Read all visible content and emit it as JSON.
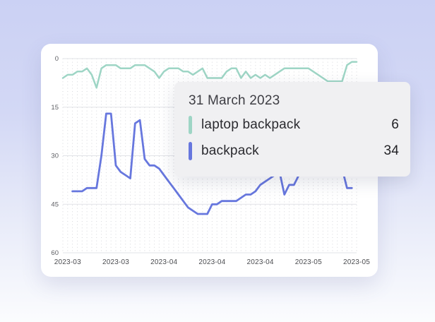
{
  "tooltip": {
    "date_label": "31 March 2023",
    "rows": [
      {
        "label": "laptop backpack",
        "value": "6",
        "color": "#9ed5c5"
      },
      {
        "label": "backpack",
        "value": "34",
        "color": "#6777de"
      }
    ]
  },
  "chart_data": {
    "type": "line",
    "title": "",
    "xlabel": "",
    "ylabel": "",
    "y_axis_inverted": true,
    "ylim": [
      0,
      60
    ],
    "y_ticks": [
      "0",
      "15",
      "30",
      "45",
      "60"
    ],
    "x_tick_labels": [
      "2023-03",
      "2023-03",
      "2023-04",
      "2023-04",
      "2023-04",
      "2023-05",
      "2023-05"
    ],
    "x_tick_indices": [
      1,
      11,
      21,
      31,
      41,
      51,
      61
    ],
    "grid": {
      "major_horizontal": "solid",
      "minor_vertical": "dotted"
    },
    "legend_position": "tooltip-only",
    "hover_date": "2023-03-31",
    "dates": [
      "2023-03-11",
      "2023-03-12",
      "2023-03-13",
      "2023-03-14",
      "2023-03-15",
      "2023-03-16",
      "2023-03-17",
      "2023-03-18",
      "2023-03-19",
      "2023-03-20",
      "2023-03-21",
      "2023-03-22",
      "2023-03-23",
      "2023-03-24",
      "2023-03-25",
      "2023-03-26",
      "2023-03-27",
      "2023-03-28",
      "2023-03-29",
      "2023-03-30",
      "2023-03-31",
      "2023-04-01",
      "2023-04-02",
      "2023-04-03",
      "2023-04-04",
      "2023-04-05",
      "2023-04-06",
      "2023-04-07",
      "2023-04-08",
      "2023-04-09",
      "2023-04-10",
      "2023-04-11",
      "2023-04-12",
      "2023-04-13",
      "2023-04-14",
      "2023-04-15",
      "2023-04-16",
      "2023-04-17",
      "2023-04-18",
      "2023-04-19",
      "2023-04-20",
      "2023-04-21",
      "2023-04-22",
      "2023-04-23",
      "2023-04-24",
      "2023-04-25",
      "2023-04-26",
      "2023-04-27",
      "2023-04-28",
      "2023-04-29",
      "2023-04-30",
      "2023-05-01",
      "2023-05-02",
      "2023-05-03",
      "2023-05-04",
      "2023-05-05",
      "2023-05-06",
      "2023-05-07",
      "2023-05-08",
      "2023-05-09",
      "2023-05-10",
      "2023-05-11"
    ],
    "series": [
      {
        "name": "laptop backpack",
        "color": "#9ed5c5",
        "stroke_width": 2.5,
        "values": [
          6,
          5,
          5,
          4,
          4,
          3,
          5,
          9,
          3,
          2,
          2,
          2,
          3,
          3,
          3,
          2,
          2,
          2,
          3,
          4,
          6,
          4,
          3,
          3,
          3,
          4,
          4,
          5,
          4,
          3,
          6,
          6,
          6,
          6,
          4,
          3,
          3,
          6,
          4,
          6,
          5,
          6,
          5,
          6,
          5,
          4,
          3,
          3,
          3,
          3,
          3,
          3,
          4,
          5,
          6,
          7,
          7,
          7,
          7,
          2,
          1,
          1
        ]
      },
      {
        "name": "backpack",
        "color": "#6777de",
        "stroke_width": 2.8,
        "values": [
          null,
          null,
          41,
          41,
          41,
          40,
          40,
          40,
          30,
          17,
          17,
          33,
          35,
          36,
          37,
          20,
          19,
          31,
          33,
          33,
          34,
          36,
          38,
          40,
          42,
          44,
          46,
          47,
          48,
          48,
          48,
          45,
          45,
          44,
          44,
          44,
          44,
          43,
          42,
          42,
          41,
          39,
          38,
          37,
          36,
          35,
          42,
          39,
          39,
          36,
          34,
          32,
          30,
          29,
          28,
          29,
          30,
          32,
          34,
          40,
          40,
          null
        ]
      }
    ],
    "axis_colors": {
      "major_grid": "#e2e3e7",
      "minor_grid": "#d6d7db",
      "y_tick_text": "#5d5e63",
      "x_tick_text": "#4b4c50"
    }
  }
}
